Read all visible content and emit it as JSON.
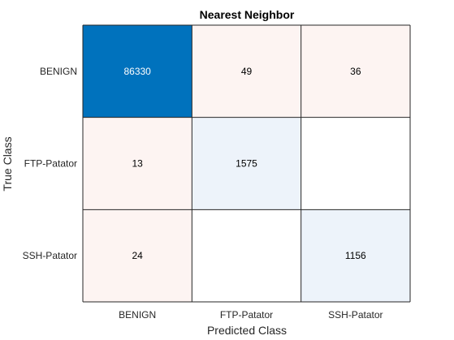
{
  "chart_data": {
    "type": "heatmap",
    "title": "Nearest Neighbor",
    "xlabel": "Predicted Class",
    "ylabel": "True Class",
    "rows": [
      "BENIGN",
      "FTP-Patator",
      "SSH-Patator"
    ],
    "cols": [
      "BENIGN",
      "FTP-Patator",
      "SSH-Patator"
    ],
    "values": [
      [
        86330,
        49,
        36
      ],
      [
        13,
        1575,
        null
      ],
      [
        24,
        null,
        1156
      ]
    ],
    "colors": {
      "diagonal_strong": "#0072bd",
      "diagonal_light": "#edf3fa",
      "off_diagonal": "#fdf4f2",
      "empty": "#ffffff",
      "grid_line": "#262626",
      "text_dark": "#000000",
      "text_light": "#ffffff"
    }
  }
}
